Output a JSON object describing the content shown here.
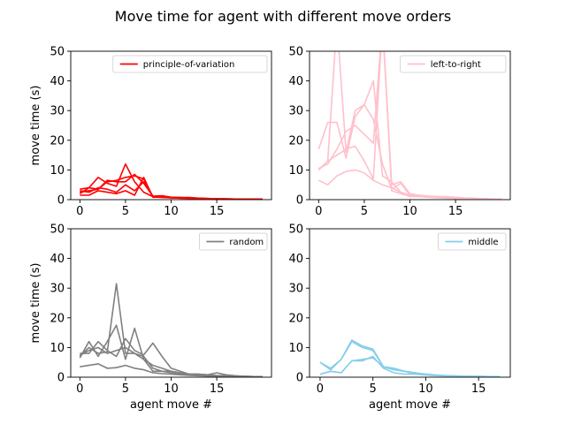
{
  "chart_data": {
    "type": "line",
    "title": "Move time for agent with different move orders",
    "grid": false,
    "panels": [
      {
        "legend": "principle-of-variation",
        "legend_position": "upper-right",
        "color": "#ff0000",
        "ylabel": "move time (s)",
        "xlabel": "",
        "ylim": [
          0,
          50
        ],
        "xlim": [
          -1,
          21
        ],
        "xticks": [
          0,
          5,
          10,
          15
        ],
        "yticks": [
          0,
          10,
          20,
          30,
          40,
          50
        ],
        "series": [
          {
            "x": [
              0,
              1,
              2,
              3,
              4,
              5,
              6,
              7,
              8,
              9,
              10,
              11,
              12,
              13,
              14,
              15,
              16,
              17,
              18,
              19,
              20
            ],
            "values": [
              3.5,
              4,
              3.5,
              6,
              6.5,
              7.5,
              8,
              7,
              1,
              1.2,
              0.8,
              0.7,
              0.7,
              0.5,
              0.4,
              0.3,
              0.3,
              0.2,
              0.2,
              0.2,
              0.2
            ]
          },
          {
            "x": [
              0,
              1,
              2,
              3,
              4,
              5,
              6,
              7,
              8,
              9,
              10,
              11,
              12,
              13,
              14,
              15,
              16,
              17,
              18,
              19,
              20
            ],
            "values": [
              2,
              4,
              7.5,
              5.5,
              4.5,
              12,
              6,
              2.5,
              1,
              1,
              0.7,
              0.6,
              0.5,
              0.4,
              0.3,
              0.3,
              0.2,
              0.2,
              0.2,
              0.2,
              0.2
            ]
          },
          {
            "x": [
              0,
              1,
              2,
              3,
              4,
              5,
              6,
              7,
              8,
              9,
              10,
              11,
              12,
              13,
              14,
              15,
              16,
              17,
              18,
              19,
              20
            ],
            "values": [
              3,
              2.5,
              4,
              3.5,
              2.5,
              5,
              3,
              6,
              1,
              0.7,
              0.6,
              0.5,
              0.5,
              0.4,
              0.3,
              0.3,
              0.2,
              0.2,
              0.2,
              0.2,
              0.2
            ]
          },
          {
            "x": [
              0,
              1,
              2,
              3,
              4,
              5,
              6,
              7,
              8,
              9,
              10,
              11,
              12,
              13,
              14,
              15,
              16,
              17,
              18,
              19,
              20
            ],
            "values": [
              1.5,
              1.5,
              3,
              2.5,
              2,
              3,
              1.5,
              7.5,
              0.8,
              0.8,
              0.6,
              0.5,
              0.4,
              0.3,
              0.3,
              0.2,
              0.2,
              0.2,
              0.2,
              0.2,
              0.2
            ]
          },
          {
            "x": [
              0,
              1,
              2,
              3,
              4,
              5,
              6,
              7,
              8,
              9,
              10,
              11,
              12,
              13,
              14,
              15,
              16,
              17,
              18,
              19,
              20
            ],
            "values": [
              2.5,
              3,
              3.5,
              6.5,
              6,
              6,
              8.5,
              5.5,
              1.2,
              1.3,
              0.8,
              0.7,
              0.6,
              0.5,
              0.4,
              0.3,
              0.3,
              0.2,
              0.2,
              0.2,
              0.2
            ]
          }
        ]
      },
      {
        "legend": "left-to-right",
        "legend_position": "upper-right",
        "color": "#ffc0cb",
        "ylabel": "",
        "xlabel": "",
        "ylim": [
          0,
          50
        ],
        "xlim": [
          -1,
          21
        ],
        "xticks": [
          0,
          5,
          10,
          15
        ],
        "yticks": [
          0,
          10,
          20,
          30,
          40,
          50
        ],
        "series": [
          {
            "x": [
              0,
              1,
              2,
              3,
              4,
              5,
              6,
              7,
              8,
              9,
              10,
              11,
              12,
              13,
              14,
              15,
              16,
              17,
              18,
              19,
              20
            ],
            "values": [
              17,
              26,
              26,
              14,
              28,
              32,
              27,
              12,
              3.5,
              5.5,
              1.5,
              1.5,
              1.2,
              1,
              1,
              0.8,
              0.6,
              0.5,
              0.3,
              0.2,
              0.2
            ]
          },
          {
            "x": [
              0,
              1,
              2,
              3,
              4,
              5,
              6,
              7,
              8,
              9,
              10,
              11,
              12,
              13,
              14,
              15,
              16,
              17,
              18,
              19,
              20
            ],
            "values": [
              10.5,
              12,
              17,
              23,
              25,
              22,
              19,
              60,
              3,
              2,
              1.2,
              1,
              1,
              0.8,
              0.6,
              0.5,
              0.4,
              0.3,
              0.3,
              0.2,
              0.2
            ]
          },
          {
            "x": [
              0,
              1,
              2,
              3,
              4,
              5,
              6,
              7,
              8,
              9,
              10,
              11,
              12,
              13,
              14,
              15,
              16,
              17,
              18,
              19,
              20
            ],
            "values": [
              10,
              13,
              60,
              16,
              30,
              32,
              40,
              8,
              6,
              2.5,
              1.5,
              1.2,
              1,
              0.8,
              0.7,
              0.5,
              0.4,
              0.3,
              0.3,
              0.2,
              0.2
            ]
          },
          {
            "x": [
              0,
              1,
              2,
              3,
              4,
              5,
              6,
              7,
              8,
              9,
              10,
              11,
              12,
              13,
              14,
              15,
              16,
              17,
              18,
              19,
              20
            ],
            "values": [
              6.5,
              5,
              8,
              9.5,
              10,
              9,
              6.5,
              5,
              4,
              2.5,
              1,
              1,
              0.8,
              0.6,
              0.5,
              0.4,
              0.3,
              0.3,
              0.2,
              0.2,
              0.2
            ]
          },
          {
            "x": [
              0,
              1,
              2,
              3,
              4,
              5,
              6,
              7,
              8,
              9,
              10,
              11,
              12,
              13,
              14,
              15,
              16,
              17,
              18,
              19,
              20
            ],
            "values": [
              10,
              13,
              15,
              17,
              18,
              13,
              7,
              60,
              5,
              6,
              2,
              1.5,
              1.2,
              1,
              0.8,
              0.6,
              0.5,
              0.4,
              0.3,
              0.2,
              0.2
            ]
          }
        ]
      },
      {
        "legend": "random",
        "legend_position": "upper-right",
        "color": "#808080",
        "ylabel": "move time (s)",
        "xlabel": "agent move #",
        "ylim": [
          0,
          50
        ],
        "xlim": [
          -1,
          21
        ],
        "xticks": [
          0,
          5,
          10,
          15
        ],
        "yticks": [
          0,
          10,
          20,
          30,
          40,
          50
        ],
        "series": [
          {
            "x": [
              0,
              1,
              2,
              3,
              4,
              5,
              6,
              7,
              8,
              9,
              10,
              11,
              12,
              13,
              14,
              15,
              16,
              17,
              18,
              19,
              20
            ],
            "values": [
              7,
              10,
              8,
              8.5,
              31.5,
              8,
              8,
              6,
              2,
              2,
              1.5,
              1,
              0.8,
              0.7,
              0.6,
              0.5,
              0.4,
              0.3,
              0.3,
              0.2,
              0.2
            ]
          },
          {
            "x": [
              0,
              1,
              2,
              3,
              4,
              5,
              6,
              7,
              8,
              9,
              10,
              11,
              12,
              13,
              14,
              15,
              16,
              17,
              18,
              19,
              20
            ],
            "values": [
              6.5,
              12,
              7,
              12,
              17.5,
              6,
              16.5,
              6,
              4,
              3,
              2,
              1.5,
              1,
              0.8,
              0.7,
              0.5,
              0.4,
              0.3,
              0.3,
              0.2,
              0.2
            ]
          },
          {
            "x": [
              0,
              1,
              2,
              3,
              4,
              5,
              6,
              7,
              8,
              9,
              10,
              11,
              12,
              13,
              14,
              15,
              16,
              17,
              18,
              19,
              20
            ],
            "values": [
              8,
              8,
              12,
              9,
              7,
              13,
              9,
              7.5,
              11.5,
              7,
              3,
              2,
              1,
              1,
              0.8,
              0.6,
              0.5,
              0.4,
              0.3,
              0.2,
              0.2
            ]
          },
          {
            "x": [
              0,
              1,
              2,
              3,
              4,
              5,
              6,
              7,
              8,
              9,
              10,
              11,
              12,
              13,
              14,
              15,
              16,
              17,
              18,
              19,
              20
            ],
            "values": [
              7.5,
              9,
              10,
              8,
              9,
              10,
              8,
              7,
              3,
              2,
              2,
              1.5,
              1,
              1,
              0.8,
              1.5,
              0.8,
              0.5,
              0.3,
              0.2,
              0.2
            ]
          },
          {
            "x": [
              0,
              1,
              2,
              3,
              4,
              5,
              6,
              7,
              8,
              9,
              10,
              11,
              12,
              13,
              14,
              15,
              16,
              17,
              18,
              19,
              20
            ],
            "values": [
              3.5,
              4,
              4.5,
              3,
              3.2,
              4,
              3,
              2.5,
              1.5,
              1.2,
              1,
              0.8,
              0.6,
              0.5,
              0.4,
              0.3,
              0.3,
              0.2,
              0.2,
              0.2,
              0.2
            ]
          }
        ]
      },
      {
        "legend": "middle",
        "legend_position": "upper-right",
        "color": "#87ceeb",
        "ylabel": "",
        "xlabel": "agent move #",
        "ylim": [
          0,
          50
        ],
        "xlim": [
          -1,
          18
        ],
        "xticks": [
          0,
          5,
          10,
          15
        ],
        "yticks": [
          0,
          10,
          20,
          30,
          40,
          50
        ],
        "series": [
          {
            "x": [
              0,
              1,
              2,
              3,
              4,
              5,
              6,
              7,
              8,
              9,
              10,
              11,
              12,
              13,
              14,
              15,
              16,
              17
            ],
            "values": [
              5,
              3,
              6,
              12.5,
              10.5,
              9.5,
              3.5,
              2.5,
              2,
              1,
              1,
              0.7,
              0.5,
              0.4,
              0.3,
              0.3,
              0.2,
              0.2
            ]
          },
          {
            "x": [
              0,
              1,
              2,
              3,
              4,
              5,
              6,
              7,
              8,
              9,
              10,
              11,
              12,
              13,
              14,
              15,
              16,
              17
            ],
            "values": [
              5,
              2.5,
              6,
              12,
              10,
              9,
              3.5,
              3,
              2,
              1.5,
              0.8,
              0.6,
              0.5,
              0.4,
              0.3,
              0.3,
              0.2,
              0.2
            ]
          },
          {
            "x": [
              0,
              1,
              2,
              3,
              4,
              5,
              6,
              7,
              8,
              9,
              10,
              11,
              12,
              13,
              14,
              15,
              16,
              17
            ],
            "values": [
              1,
              2,
              1.5,
              5.5,
              5.5,
              7,
              3,
              1.5,
              1,
              1,
              0.7,
              0.5,
              0.4,
              0.3,
              0.3,
              0.2,
              0.2,
              0.2
            ]
          },
          {
            "x": [
              0,
              1,
              2,
              3,
              4,
              5,
              6,
              7,
              8,
              9,
              10,
              11,
              12,
              13,
              14,
              15,
              16,
              17
            ],
            "values": [
              1,
              2,
              1.5,
              5.5,
              6,
              6.5,
              3.5,
              2.5,
              2,
              1.5,
              1,
              0.6,
              0.5,
              0.4,
              0.3,
              0.3,
              0.2,
              0.2
            ]
          }
        ]
      }
    ]
  }
}
